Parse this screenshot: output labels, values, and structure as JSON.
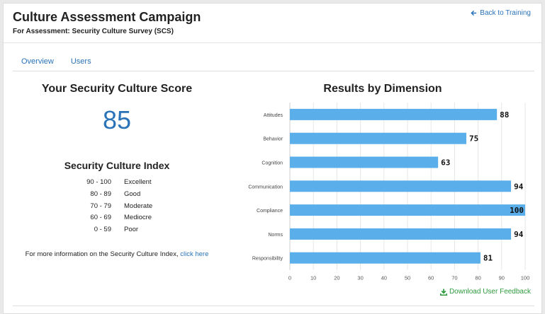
{
  "header": {
    "title": "Culture Assessment Campaign",
    "subtitle": "For Assessment: Security Culture Survey (SCS)",
    "back_label": "Back to Training"
  },
  "tabs": [
    {
      "label": "Overview"
    },
    {
      "label": "Users"
    }
  ],
  "score": {
    "title": "Your Security Culture Score",
    "value": "85"
  },
  "index": {
    "title": "Security Culture Index",
    "rows": [
      {
        "range": "90 - 100",
        "label": "Excellent"
      },
      {
        "range": "80 - 89",
        "label": "Good"
      },
      {
        "range": "70 - 79",
        "label": "Moderate"
      },
      {
        "range": "60 - 69",
        "label": "Mediocre"
      },
      {
        "range": "0 - 59",
        "label": "Poor"
      }
    ],
    "more_info_text": "For more information on the Security Culture Index,",
    "more_info_link": "click here"
  },
  "download_label": "Download User Feedback",
  "colors": {
    "bar": "#5aaee9",
    "accent": "#2a73b8",
    "download": "#2e9a3e"
  },
  "chart_data": {
    "type": "bar",
    "orientation": "horizontal",
    "title": "Results by Dimension",
    "categories": [
      "Attitudes",
      "Behavior",
      "Cognition",
      "Communication",
      "Compliance",
      "Norms",
      "Responsibility"
    ],
    "values": [
      88,
      75,
      63,
      94,
      100,
      94,
      81
    ],
    "xlim": [
      0,
      100
    ],
    "xticks": [
      0,
      10,
      20,
      30,
      40,
      50,
      60,
      70,
      80,
      90,
      100
    ],
    "grid": true,
    "data_labels": true
  }
}
